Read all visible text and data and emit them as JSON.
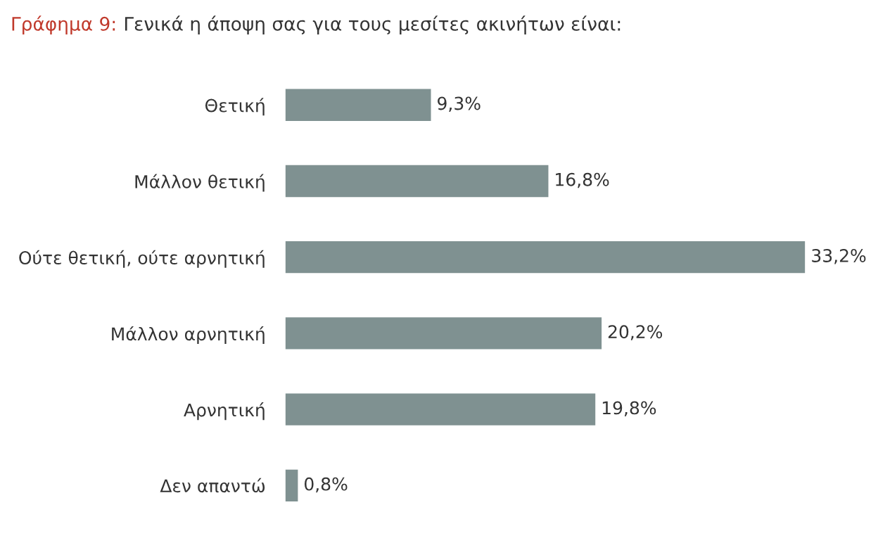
{
  "chart_data": {
    "type": "bar",
    "orientation": "horizontal",
    "title": "Γράφημα 9: Γενικά η άποψη σας για τους μεσίτες ακινήτων είναι:",
    "categories": [
      "Θετική",
      "Μάλλον θετική",
      "Ούτε θετική, ούτε αρνητική",
      "Μάλλον αρνητική",
      "Αρνητική",
      "Δεν απαντώ"
    ],
    "values": [
      9.3,
      16.8,
      33.2,
      20.2,
      19.8,
      0.8
    ],
    "value_labels": [
      "9,3%",
      "16,8%",
      "33,2%",
      "20,2%",
      "19,8%",
      "0,8%"
    ],
    "color": "#7f9191",
    "grid": false,
    "legend": false
  }
}
